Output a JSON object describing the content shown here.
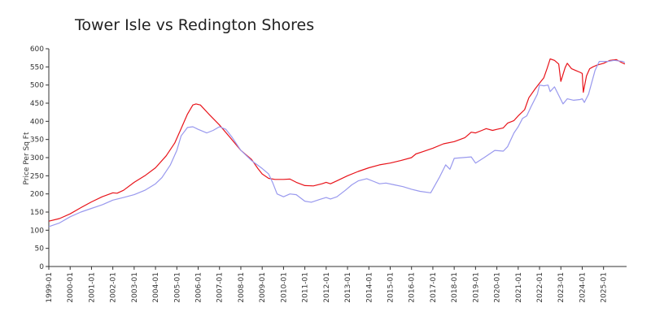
{
  "chart_data": {
    "type": "line",
    "title": "Tower Isle vs Redington Shores",
    "xlabel": "",
    "ylabel": "Price Per Sq Ft",
    "ylim": [
      0,
      600
    ],
    "yticks": [
      0,
      50,
      100,
      150,
      200,
      250,
      300,
      350,
      400,
      450,
      500,
      550,
      600
    ],
    "xlim": [
      1999.0,
      2026.08
    ],
    "xtick_labels": [
      "1999-01",
      "2000-01",
      "2001-01",
      "2002-01",
      "2003-01",
      "2004-01",
      "2005-01",
      "2006-01",
      "2007-01",
      "2008-01",
      "2009-01",
      "2010-01",
      "2011-01",
      "2012-01",
      "2013-01",
      "2014-01",
      "2015-01",
      "2016-01",
      "2017-01",
      "2018-01",
      "2019-01",
      "2020-01",
      "2021-01",
      "2022-01",
      "2023-01",
      "2024-01",
      "2025-01"
    ],
    "grid": false,
    "legend": "none",
    "series": [
      {
        "color": "#e8131a",
        "points": [
          [
            1999.0,
            125
          ],
          [
            1999.5,
            132
          ],
          [
            2000.0,
            145
          ],
          [
            2000.5,
            162
          ],
          [
            2001.0,
            178
          ],
          [
            2001.5,
            192
          ],
          [
            2002.0,
            203
          ],
          [
            2002.2,
            202
          ],
          [
            2002.5,
            210
          ],
          [
            2003.0,
            232
          ],
          [
            2003.5,
            250
          ],
          [
            2004.0,
            272
          ],
          [
            2004.5,
            305
          ],
          [
            2004.9,
            340
          ],
          [
            2005.2,
            380
          ],
          [
            2005.5,
            420
          ],
          [
            2005.75,
            445
          ],
          [
            2005.9,
            448
          ],
          [
            2006.1,
            445
          ],
          [
            2006.5,
            420
          ],
          [
            2007.0,
            390
          ],
          [
            2007.5,
            355
          ],
          [
            2008.0,
            320
          ],
          [
            2008.5,
            295
          ],
          [
            2008.8,
            270
          ],
          [
            2009.0,
            255
          ],
          [
            2009.3,
            243
          ],
          [
            2009.6,
            240
          ],
          [
            2010.0,
            240
          ],
          [
            2010.3,
            241
          ],
          [
            2010.6,
            232
          ],
          [
            2011.0,
            223
          ],
          [
            2011.4,
            222
          ],
          [
            2011.8,
            228
          ],
          [
            2012.0,
            232
          ],
          [
            2012.2,
            228
          ],
          [
            2012.5,
            236
          ],
          [
            2013.0,
            250
          ],
          [
            2013.5,
            262
          ],
          [
            2014.0,
            272
          ],
          [
            2014.5,
            280
          ],
          [
            2015.0,
            285
          ],
          [
            2015.5,
            292
          ],
          [
            2016.0,
            300
          ],
          [
            2016.2,
            310
          ],
          [
            2016.5,
            316
          ],
          [
            2017.0,
            326
          ],
          [
            2017.5,
            338
          ],
          [
            2018.0,
            344
          ],
          [
            2018.5,
            355
          ],
          [
            2018.8,
            370
          ],
          [
            2019.0,
            368
          ],
          [
            2019.3,
            375
          ],
          [
            2019.5,
            380
          ],
          [
            2019.8,
            375
          ],
          [
            2020.0,
            378
          ],
          [
            2020.3,
            382
          ],
          [
            2020.5,
            395
          ],
          [
            2020.8,
            402
          ],
          [
            2021.0,
            415
          ],
          [
            2021.3,
            432
          ],
          [
            2021.5,
            465
          ],
          [
            2021.8,
            490
          ],
          [
            2022.0,
            505
          ],
          [
            2022.2,
            520
          ],
          [
            2022.35,
            545
          ],
          [
            2022.5,
            572
          ],
          [
            2022.7,
            568
          ],
          [
            2022.9,
            558
          ],
          [
            2023.0,
            510
          ],
          [
            2023.2,
            548
          ],
          [
            2023.3,
            560
          ],
          [
            2023.5,
            545
          ],
          [
            2023.7,
            540
          ],
          [
            2023.9,
            535
          ],
          [
            2024.0,
            532
          ],
          [
            2024.05,
            480
          ],
          [
            2024.2,
            525
          ],
          [
            2024.35,
            545
          ],
          [
            2024.5,
            550
          ],
          [
            2024.7,
            555
          ],
          [
            2025.0,
            560
          ],
          [
            2025.3,
            568
          ],
          [
            2025.6,
            570
          ],
          [
            2025.85,
            562
          ],
          [
            2026.0,
            558
          ]
        ]
      },
      {
        "color": "#9999ee",
        "points": [
          [
            1999.0,
            110
          ],
          [
            1999.5,
            120
          ],
          [
            2000.0,
            137
          ],
          [
            2000.5,
            150
          ],
          [
            2001.0,
            160
          ],
          [
            2001.5,
            170
          ],
          [
            2002.0,
            183
          ],
          [
            2002.5,
            190
          ],
          [
            2003.0,
            198
          ],
          [
            2003.5,
            210
          ],
          [
            2004.0,
            228
          ],
          [
            2004.3,
            245
          ],
          [
            2004.7,
            280
          ],
          [
            2005.0,
            320
          ],
          [
            2005.2,
            360
          ],
          [
            2005.5,
            383
          ],
          [
            2005.75,
            385
          ],
          [
            2006.0,
            378
          ],
          [
            2006.4,
            368
          ],
          [
            2006.7,
            375
          ],
          [
            2007.0,
            385
          ],
          [
            2007.3,
            378
          ],
          [
            2007.6,
            355
          ],
          [
            2008.0,
            320
          ],
          [
            2008.5,
            292
          ],
          [
            2009.0,
            270
          ],
          [
            2009.3,
            255
          ],
          [
            2009.5,
            230
          ],
          [
            2009.7,
            200
          ],
          [
            2010.0,
            192
          ],
          [
            2010.3,
            200
          ],
          [
            2010.6,
            198
          ],
          [
            2011.0,
            180
          ],
          [
            2011.3,
            177
          ],
          [
            2011.7,
            185
          ],
          [
            2012.0,
            190
          ],
          [
            2012.2,
            186
          ],
          [
            2012.5,
            192
          ],
          [
            2012.9,
            210
          ],
          [
            2013.2,
            225
          ],
          [
            2013.5,
            236
          ],
          [
            2013.9,
            242
          ],
          [
            2014.2,
            235
          ],
          [
            2014.5,
            228
          ],
          [
            2014.8,
            230
          ],
          [
            2015.2,
            225
          ],
          [
            2015.6,
            220
          ],
          [
            2016.0,
            213
          ],
          [
            2016.4,
            207
          ],
          [
            2016.9,
            203
          ],
          [
            2017.3,
            245
          ],
          [
            2017.6,
            280
          ],
          [
            2017.8,
            268
          ],
          [
            2018.0,
            298
          ],
          [
            2018.4,
            300
          ],
          [
            2018.8,
            302
          ],
          [
            2019.0,
            285
          ],
          [
            2019.4,
            300
          ],
          [
            2019.9,
            320
          ],
          [
            2020.3,
            318
          ],
          [
            2020.5,
            330
          ],
          [
            2020.8,
            368
          ],
          [
            2021.0,
            385
          ],
          [
            2021.2,
            408
          ],
          [
            2021.4,
            415
          ],
          [
            2021.6,
            440
          ],
          [
            2021.9,
            475
          ],
          [
            2022.0,
            500
          ],
          [
            2022.2,
            498
          ],
          [
            2022.4,
            500
          ],
          [
            2022.5,
            482
          ],
          [
            2022.7,
            495
          ],
          [
            2023.0,
            460
          ],
          [
            2023.1,
            448
          ],
          [
            2023.3,
            462
          ],
          [
            2023.6,
            458
          ],
          [
            2023.9,
            460
          ],
          [
            2024.0,
            462
          ],
          [
            2024.1,
            452
          ],
          [
            2024.3,
            475
          ],
          [
            2024.6,
            540
          ],
          [
            2024.8,
            565
          ],
          [
            2025.2,
            565
          ],
          [
            2025.5,
            568
          ],
          [
            2025.9,
            565
          ],
          [
            2026.0,
            562
          ]
        ]
      }
    ]
  }
}
